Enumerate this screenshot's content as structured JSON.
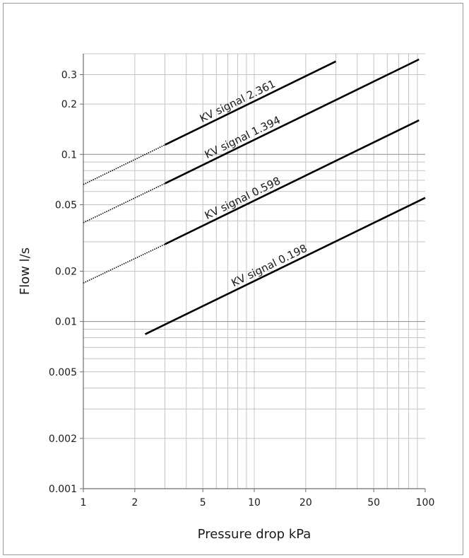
{
  "chart_data": {
    "type": "line",
    "title": "",
    "xlabel": "Pressure drop kPa",
    "ylabel": "Flow l/s",
    "x_scale": "log",
    "y_scale": "log",
    "xlim": [
      1,
      100
    ],
    "ylim": [
      0.001,
      0.4
    ],
    "x_ticks": [
      {
        "value": 1,
        "label": "1"
      },
      {
        "value": 2,
        "label": "2"
      },
      {
        "value": 5,
        "label": "5"
      },
      {
        "value": 10,
        "label": "10"
      },
      {
        "value": 20,
        "label": "20"
      },
      {
        "value": 50,
        "label": "50"
      },
      {
        "value": 100,
        "label": "100"
      }
    ],
    "y_ticks": [
      {
        "value": 0.001,
        "label": "0.001"
      },
      {
        "value": 0.002,
        "label": "0.002"
      },
      {
        "value": 0.005,
        "label": "0.005"
      },
      {
        "value": 0.01,
        "label": "0.01"
      },
      {
        "value": 0.02,
        "label": "0.02"
      },
      {
        "value": 0.05,
        "label": "0.05"
      },
      {
        "value": 0.1,
        "label": "0.1"
      },
      {
        "value": 0.2,
        "label": "0.2"
      },
      {
        "value": 0.3,
        "label": "0.3"
      }
    ],
    "grid": true,
    "line_color": "#000000",
    "grid_color": "#c4c4c4",
    "series": [
      {
        "name": "KV signal 2.361",
        "dotted": {
          "x": [
            1,
            3
          ],
          "y": [
            0.066,
            0.114
          ]
        },
        "solid": {
          "x": [
            3,
            30
          ],
          "y": [
            0.114,
            0.36
          ]
        }
      },
      {
        "name": "KV signal 1.394",
        "dotted": {
          "x": [
            1,
            3
          ],
          "y": [
            0.039,
            0.067
          ]
        },
        "solid": {
          "x": [
            3,
            92
          ],
          "y": [
            0.067,
            0.37
          ]
        }
      },
      {
        "name": "KV signal 0.598",
        "dotted": {
          "x": [
            1,
            3
          ],
          "y": [
            0.017,
            0.029
          ]
        },
        "solid": {
          "x": [
            3,
            92
          ],
          "y": [
            0.029,
            0.16
          ]
        }
      },
      {
        "name": "KV signal 0.198",
        "solid": {
          "x": [
            2.3,
            100
          ],
          "y": [
            0.0084,
            0.055
          ]
        }
      }
    ]
  }
}
